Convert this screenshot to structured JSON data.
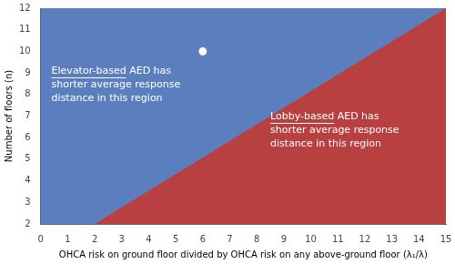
{
  "chart_data": {
    "type": "area",
    "xlabel": "OHCA risk on ground floor divided by OHCA risk on any above-ground floor (λ₁/λ)",
    "ylabel": "Number of floors (n)",
    "xlim": [
      0,
      15
    ],
    "ylim": [
      2,
      12
    ],
    "xticks": [
      0,
      1,
      2,
      3,
      4,
      5,
      6,
      7,
      8,
      9,
      10,
      11,
      12,
      13,
      14,
      15
    ],
    "yticks": [
      2,
      3,
      4,
      5,
      6,
      7,
      8,
      9,
      10,
      11,
      12
    ],
    "grid": false,
    "color": "#5B7FBE",
    "series": [
      {
        "type": "area",
        "color": "#B94040",
        "x": [
          2,
          15,
          15
        ],
        "values": [
          2,
          12,
          2
        ]
      },
      {
        "type": "scatter",
        "color": "#FFFFFF",
        "marker": "circle",
        "x": [
          6
        ],
        "values": [
          10
        ]
      }
    ],
    "annotations": [
      {
        "text": [
          "Elevator-based AED has",
          "shorter average response",
          "distance in this region"
        ],
        "x": 0.4,
        "y": 9.3,
        "color": "#FFFFFF"
      },
      {
        "text": [
          "Lobby-based AED has",
          "shorter average response",
          "distance in this region"
        ],
        "x": 8.5,
        "y": 7.2,
        "color": "#FFFFFF"
      }
    ]
  }
}
